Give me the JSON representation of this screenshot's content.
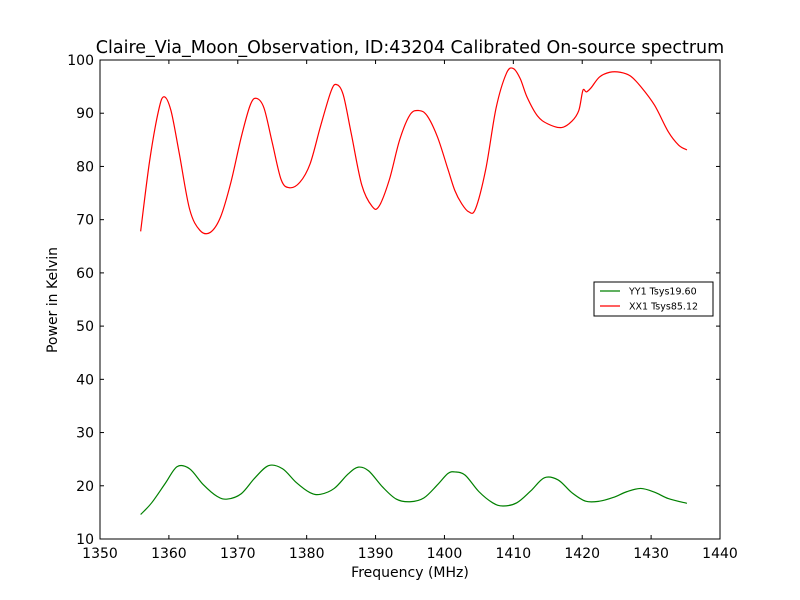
{
  "chart_data": {
    "type": "line",
    "title": "Claire_Via_Moon_Observation, ID:43204 Calibrated On-source spectrum",
    "xlabel": "Frequency (MHz)",
    "ylabel": "Power in Kelvin",
    "xlim": [
      1350,
      1440
    ],
    "ylim": [
      10,
      100
    ],
    "xticks": [
      1350,
      1360,
      1370,
      1380,
      1390,
      1400,
      1410,
      1420,
      1430,
      1440
    ],
    "yticks": [
      10,
      20,
      30,
      40,
      50,
      60,
      70,
      80,
      90,
      100
    ],
    "grid": false,
    "legend_position": "right",
    "series": [
      {
        "name": "YY1 Tsys19.60",
        "color": "#008000",
        "x": [
          1355.9,
          1357.5,
          1359.5,
          1361.2,
          1363.0,
          1365.0,
          1367.0,
          1368.5,
          1370.5,
          1372.5,
          1374.5,
          1376.5,
          1378.5,
          1380.5,
          1382.0,
          1384.0,
          1386.0,
          1387.5,
          1389.0,
          1391.0,
          1393.0,
          1395.0,
          1397.0,
          1399.0,
          1400.5,
          1401.5,
          1403.0,
          1405.0,
          1407.0,
          1408.5,
          1410.5,
          1412.5,
          1414.5,
          1416.5,
          1418.5,
          1420.5,
          1422.5,
          1424.5,
          1426.5,
          1428.5,
          1430.5,
          1432.5,
          1435.2
        ],
        "y": [
          14.6,
          16.8,
          20.5,
          23.6,
          23.2,
          20.2,
          18.0,
          17.5,
          18.5,
          21.5,
          23.8,
          23.2,
          20.6,
          18.7,
          18.4,
          19.5,
          22.2,
          23.5,
          22.8,
          19.8,
          17.5,
          17.0,
          17.7,
          20.2,
          22.3,
          22.6,
          22.0,
          18.9,
          16.8,
          16.2,
          16.8,
          19.0,
          21.5,
          21.1,
          18.7,
          17.1,
          17.1,
          17.8,
          18.9,
          19.5,
          18.8,
          17.6,
          16.7
        ]
      },
      {
        "name": "XX1 Tsys85.12",
        "color": "#ff0000",
        "x": [
          1355.9,
          1357.2,
          1358.5,
          1359.3,
          1360.3,
          1361.5,
          1363.0,
          1364.5,
          1366.0,
          1367.5,
          1369.0,
          1370.5,
          1371.8,
          1372.7,
          1373.8,
          1375.0,
          1376.3,
          1377.5,
          1379.0,
          1380.5,
          1382.0,
          1383.5,
          1384.3,
          1385.3,
          1386.5,
          1388.0,
          1389.5,
          1390.5,
          1392.0,
          1393.5,
          1395.0,
          1396.3,
          1397.5,
          1399.0,
          1400.5,
          1401.5,
          1402.5,
          1403.5,
          1404.5,
          1406.0,
          1407.5,
          1409.0,
          1410.0,
          1411.0,
          1412.0,
          1413.5,
          1415.0,
          1417.0,
          1418.5,
          1419.5,
          1420.1,
          1420.6,
          1421.3,
          1422.5,
          1424.0,
          1425.5,
          1427.0,
          1428.5,
          1430.5,
          1432.5,
          1434.0,
          1435.2
        ],
        "y": [
          67.8,
          81.0,
          90.5,
          93.1,
          90.5,
          82.5,
          72.0,
          68.0,
          67.6,
          70.5,
          77.0,
          85.5,
          91.5,
          92.8,
          91.0,
          84.5,
          77.5,
          76.0,
          77.0,
          80.5,
          87.5,
          94.0,
          95.4,
          93.5,
          86.0,
          76.5,
          72.5,
          72.5,
          77.5,
          85.0,
          89.7,
          90.5,
          89.5,
          85.5,
          79.5,
          75.5,
          73.0,
          71.5,
          72.0,
          79.5,
          91.0,
          97.5,
          98.4,
          96.5,
          93.0,
          89.5,
          88.0,
          87.3,
          88.5,
          90.5,
          94.3,
          94.0,
          94.8,
          96.8,
          97.7,
          97.7,
          97.0,
          95.0,
          91.5,
          86.5,
          84.0,
          83.1
        ]
      }
    ]
  }
}
